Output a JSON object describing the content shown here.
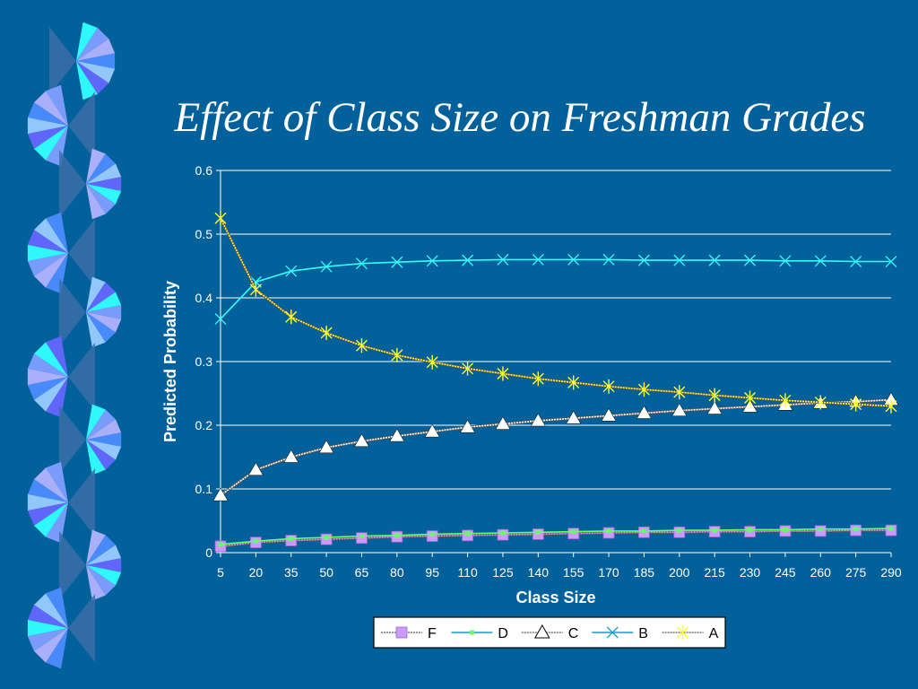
{
  "slide": {
    "title": "Effect of Class Size on Freshman Grades",
    "background": "#02609a"
  },
  "chart_data": {
    "type": "line",
    "xlabel": "Class Size",
    "ylabel": "Predicted Probability",
    "categories": [
      5,
      20,
      35,
      50,
      65,
      80,
      95,
      110,
      125,
      140,
      155,
      170,
      185,
      200,
      215,
      230,
      245,
      260,
      275,
      290
    ],
    "ylim": [
      0,
      0.6
    ],
    "yticks": [
      0,
      0.1,
      0.2,
      0.3,
      0.4,
      0.5,
      0.6
    ],
    "grid": true,
    "legend_position": "bottom",
    "series": [
      {
        "name": "F",
        "color": "#cc99ff",
        "marker": "square",
        "values": [
          0.01,
          0.016,
          0.019,
          0.021,
          0.023,
          0.025,
          0.026,
          0.027,
          0.028,
          0.029,
          0.03,
          0.031,
          0.032,
          0.032,
          0.033,
          0.033,
          0.034,
          0.034,
          0.035,
          0.035
        ]
      },
      {
        "name": "D",
        "color": "#66ff66",
        "marker": "small-square",
        "values": [
          0.013,
          0.018,
          0.022,
          0.024,
          0.026,
          0.027,
          0.029,
          0.03,
          0.031,
          0.032,
          0.033,
          0.034,
          0.034,
          0.035,
          0.035,
          0.036,
          0.036,
          0.037,
          0.037,
          0.038
        ]
      },
      {
        "name": "C",
        "color": "#ffffff",
        "marker": "triangle",
        "values": [
          0.09,
          0.13,
          0.15,
          0.165,
          0.175,
          0.183,
          0.19,
          0.197,
          0.202,
          0.207,
          0.211,
          0.215,
          0.219,
          0.223,
          0.226,
          0.229,
          0.232,
          0.235,
          0.237,
          0.24
        ]
      },
      {
        "name": "B",
        "color": "#33ffff",
        "marker": "x",
        "values": [
          0.367,
          0.425,
          0.442,
          0.449,
          0.454,
          0.456,
          0.458,
          0.459,
          0.46,
          0.46,
          0.46,
          0.46,
          0.459,
          0.459,
          0.459,
          0.459,
          0.458,
          0.458,
          0.457,
          0.457
        ]
      },
      {
        "name": "A",
        "color": "#ffff33",
        "marker": "star",
        "values": [
          0.525,
          0.413,
          0.37,
          0.345,
          0.325,
          0.31,
          0.299,
          0.289,
          0.281,
          0.273,
          0.267,
          0.261,
          0.256,
          0.252,
          0.247,
          0.243,
          0.239,
          0.236,
          0.233,
          0.23
        ]
      }
    ]
  }
}
